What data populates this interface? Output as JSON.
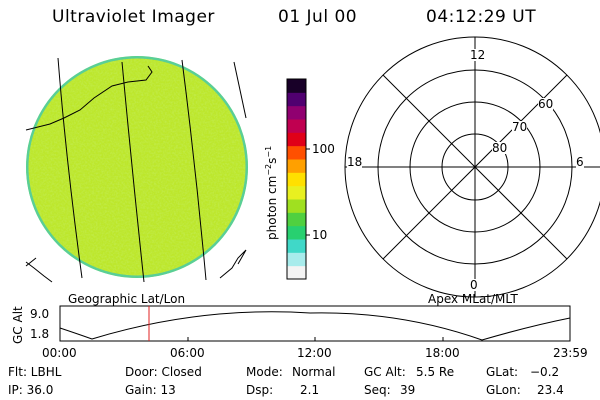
{
  "header": {
    "instrument": "Ultraviolet Imager",
    "date": "01 Jul 00",
    "time": "04:12:29 UT"
  },
  "image_panel": {
    "caption": "Geographic Lat/Lon"
  },
  "colorbar": {
    "unit_label": "photon cm",
    "unit_exp1": "−2",
    "unit_mid": "s",
    "unit_exp2": "−1",
    "ticks": [
      "100",
      "10"
    ],
    "colors": [
      "#f4f4f4",
      "#a8ecec",
      "#40d8c8",
      "#28d070",
      "#50d040",
      "#a0e020",
      "#e8f020",
      "#ffe000",
      "#ffa000",
      "#ff5000",
      "#e00018",
      "#c00050",
      "#900070",
      "#500070",
      "#180028"
    ]
  },
  "polar_plot": {
    "caption": "Apex  MLat/MLT",
    "mlt_labels": [
      "12",
      "18",
      "6",
      "0"
    ],
    "lat_labels": [
      "60",
      "70",
      "80"
    ]
  },
  "altitude_plot": {
    "ylabel": "GC Alt",
    "yticks": [
      "9.0",
      "1.8"
    ],
    "xticks": [
      "00:00",
      "06:00",
      "12:00",
      "18:00",
      "23:59"
    ],
    "marker_color": "#e02020"
  },
  "info": {
    "filter": "Flt: LBHL",
    "ip": "IP: 36.0",
    "door": "Door: Closed",
    "gain": "Gain: 13",
    "mode_label": "Mode:",
    "mode_value": "Normal",
    "dsp_label": "Dsp:",
    "dsp_value": "2.1",
    "gcalt_label": "GC Alt:",
    "gcalt_value": "5.5 Re",
    "seq_label": "Seq:",
    "seq_value": "39",
    "glat_label": "GLat:",
    "glat_value": "−0.2",
    "glon_label": "GLon:",
    "glon_value": "23.4"
  }
}
